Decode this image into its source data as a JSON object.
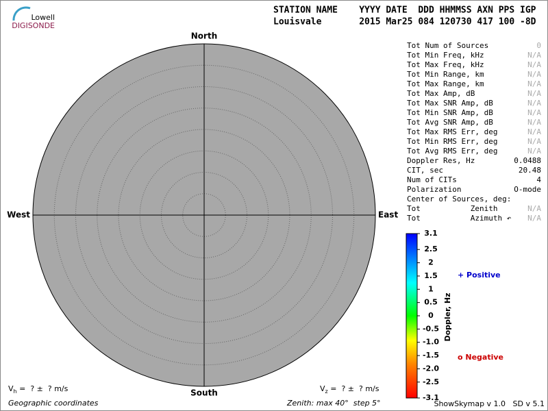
{
  "logo": {
    "top": "Lowell",
    "bottom": "DIGISONDE"
  },
  "header": {
    "line1": "STATION NAME    YYYY DATE  DDD HHMMSS AXN PPS IGP",
    "line2": "Louisvale       2015 Mar25 084 120730 417 100 -8D"
  },
  "stats": {
    "rows": [
      [
        "Tot Num of Sources",
        "0"
      ],
      [
        "Tot Min Freq, kHz",
        "N/A"
      ],
      [
        "Tot Max Freq, kHz",
        "N/A"
      ],
      [
        "Tot Min Range, km",
        "N/A"
      ],
      [
        "Tot Max Range, km",
        "N/A"
      ],
      [
        "Tot Max Amp, dB",
        "N/A"
      ],
      [
        "Tot Max SNR Amp, dB",
        "N/A"
      ],
      [
        "Tot Min SNR Amp, dB",
        "N/A"
      ],
      [
        "Tot Avg SNR Amp, dB",
        "N/A"
      ],
      [
        "Tot Max RMS Err, deg",
        "N/A"
      ],
      [
        "Tot Min RMS Err, deg",
        "N/A"
      ],
      [
        "Tot Avg RMS Err, deg",
        "N/A"
      ],
      [
        "Doppler Res, Hz",
        "0.0488"
      ],
      [
        "CIT, sec",
        "20.48"
      ],
      [
        "Num of CITs",
        "4"
      ],
      [
        "Polarization",
        "O-mode"
      ],
      [
        "Center of Sources, deg:",
        null
      ],
      [
        "Tot           Zenith",
        "N/A"
      ],
      [
        "Tot           Azimuth ↶",
        "N/A"
      ]
    ]
  },
  "chart_data": {
    "type": "skymap",
    "compass": {
      "north": "North",
      "south": "South",
      "west": "West",
      "east": "East"
    },
    "rlim": [
      0,
      40
    ],
    "rticks": [
      5,
      10,
      15,
      20,
      25,
      30,
      35,
      40
    ],
    "colorbar": {
      "label": "Doppler, Hz",
      "lim": [
        -3.1,
        3.1
      ],
      "ticks": [
        3.1,
        2.5,
        2,
        1.5,
        1,
        0.5,
        0,
        -0.5,
        {
          "value": -1,
          "label": "-1.0"
        },
        -1.5,
        {
          "value": -2,
          "label": "-2.0"
        },
        -2.5,
        -3.1
      ]
    },
    "legend": [
      {
        "name": "+ Positive",
        "color": "#0000cc"
      },
      {
        "name": "o Negative",
        "color": "#cc0000"
      }
    ]
  },
  "footer": {
    "vh": {
      "symbol": "V",
      "sub": "h",
      "text": " =  ? ±  ? m/s"
    },
    "vz": {
      "symbol": "V",
      "sub": "z",
      "text": " =  ? ±  ? m/s"
    },
    "coords": "Geographic coordinates",
    "zenith": "Zenith: max 40°  step 5°",
    "version": "ShowSkymap v 1.0   SD v 5.1"
  }
}
